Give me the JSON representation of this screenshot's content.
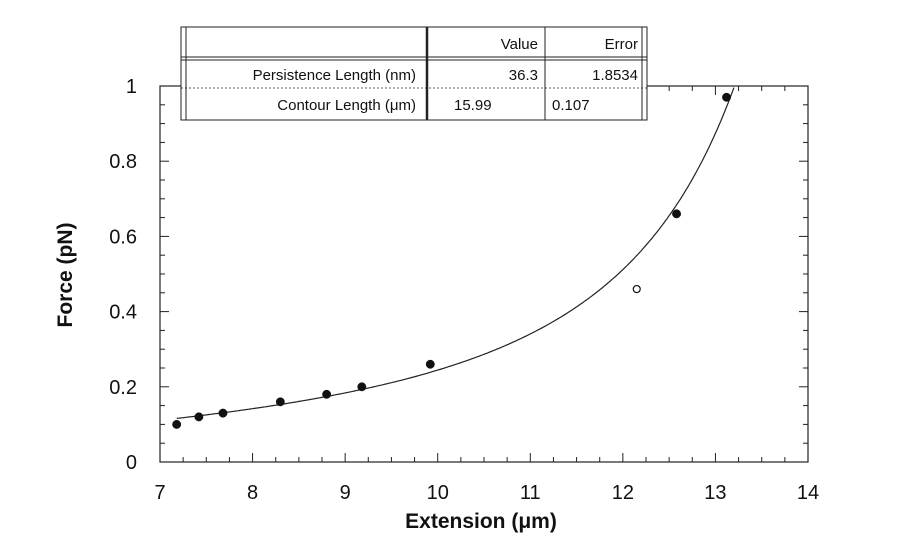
{
  "chart_data": {
    "type": "scatter",
    "xlabel": "Extension (μm)",
    "ylabel": "Force (pN)",
    "xlim": [
      7,
      14
    ],
    "ylim": [
      0,
      1
    ],
    "x_ticks": [
      7,
      8,
      9,
      10,
      11,
      12,
      13,
      14
    ],
    "y_ticks": [
      0,
      0.2,
      0.4,
      0.6,
      0.8,
      1
    ],
    "grid": false,
    "series": [
      {
        "marker": "filled-circle",
        "x": [
          7.18,
          7.42,
          7.68,
          8.3,
          8.8,
          9.18,
          9.92,
          12.58,
          13.12
        ],
        "y": [
          0.1,
          0.12,
          0.13,
          0.16,
          0.18,
          0.2,
          0.26,
          0.66,
          0.97
        ]
      },
      {
        "marker": "open-circle",
        "x": [
          12.15
        ],
        "y": [
          0.46
        ]
      }
    ],
    "fit_curve": {
      "model": "worm-like chain",
      "persistence_length_nm": 36.3,
      "contour_length_um": 15.99
    },
    "results_table": {
      "headers": [
        "",
        "Value",
        "Error"
      ],
      "rows": [
        {
          "label": "Persistence Length (nm)",
          "value": "36.3",
          "error": "1.8534"
        },
        {
          "label": "Contour Length (μm)",
          "value": "15.99",
          "error": "0.107"
        }
      ]
    }
  }
}
